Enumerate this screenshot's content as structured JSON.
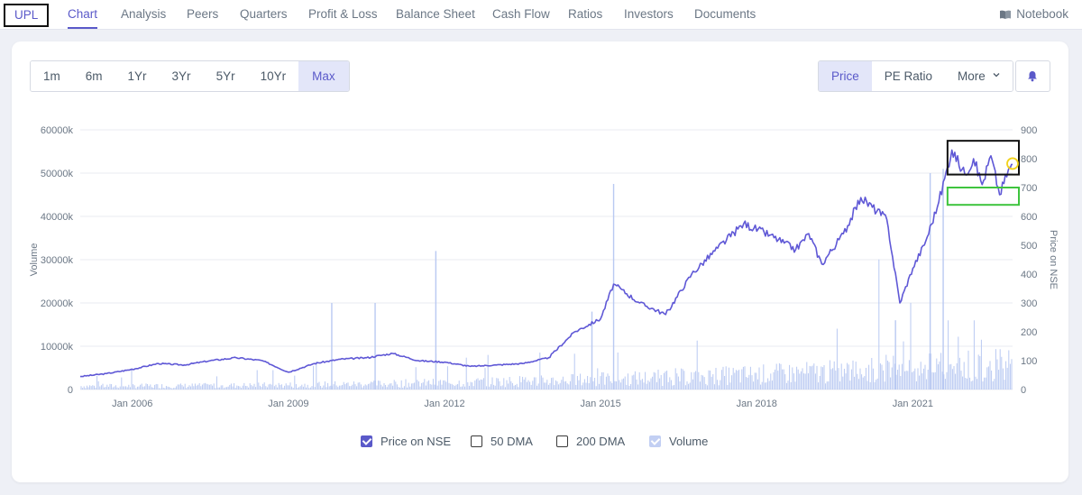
{
  "nav": {
    "company": "UPL",
    "items": [
      "Chart",
      "Analysis",
      "Peers",
      "Quarters",
      "Profit & Loss",
      "Balance Sheet",
      "Cash Flow",
      "Ratios",
      "Investors",
      "Documents"
    ],
    "active": "Chart",
    "notebook": "Notebook"
  },
  "ranges": [
    "1m",
    "6m",
    "1Yr",
    "3Yr",
    "5Yr",
    "10Yr",
    "Max"
  ],
  "active_range": "Max",
  "metrics": {
    "price": "Price",
    "pe": "PE Ratio",
    "more": "More"
  },
  "active_metric": "Price",
  "legend": {
    "price": "Price on NSE",
    "dma50": "50 DMA",
    "dma200": "200 DMA",
    "volume": "Volume"
  },
  "colors": {
    "accent": "#5a59c9",
    "price_line": "#5f58d6",
    "volume_bar": "#b9c9f2",
    "grid": "#e8ebf0",
    "highlight_black": "#111111",
    "highlight_green": "#3ec43e",
    "highlight_yellow": "#f2d21b"
  },
  "icons": {
    "notebook": "book-icon",
    "alert": "bell-icon",
    "more": "chevron-down-icon"
  },
  "chart_data": {
    "type": "line",
    "x_type": "date",
    "xlim": [
      "2005-01",
      "2022-12"
    ],
    "x_ticks": [
      "Jan 2006",
      "Jan 2009",
      "Jan 2012",
      "Jan 2015",
      "Jan 2018",
      "Jan 2021"
    ],
    "ylabel_left": "Volume",
    "ylabel_right": "Price on NSE",
    "ylim_left": [
      0,
      60000
    ],
    "ylim_right": [
      0,
      900
    ],
    "y_ticks_left": [
      "0",
      "10000k",
      "20000k",
      "30000k",
      "40000k",
      "50000k",
      "60000k"
    ],
    "y_ticks_right": [
      "0",
      "100",
      "200",
      "300",
      "400",
      "500",
      "600",
      "700",
      "800",
      "900"
    ],
    "grid": true,
    "series": [
      {
        "name": "Price on NSE",
        "axis": "right",
        "points": [
          [
            "2005-01",
            45
          ],
          [
            "2005-07",
            55
          ],
          [
            "2006-01",
            70
          ],
          [
            "2006-07",
            90
          ],
          [
            "2007-01",
            85
          ],
          [
            "2007-07",
            100
          ],
          [
            "2008-01",
            110
          ],
          [
            "2008-07",
            100
          ],
          [
            "2009-01",
            60
          ],
          [
            "2009-07",
            90
          ],
          [
            "2010-01",
            105
          ],
          [
            "2010-07",
            110
          ],
          [
            "2011-01",
            125
          ],
          [
            "2011-07",
            100
          ],
          [
            "2012-01",
            95
          ],
          [
            "2012-07",
            80
          ],
          [
            "2013-01",
            85
          ],
          [
            "2013-07",
            90
          ],
          [
            "2014-01",
            110
          ],
          [
            "2014-07",
            200
          ],
          [
            "2015-01",
            245
          ],
          [
            "2015-04",
            365
          ],
          [
            "2015-10",
            300
          ],
          [
            "2016-04",
            260
          ],
          [
            "2016-10",
            400
          ],
          [
            "2017-04",
            490
          ],
          [
            "2017-10",
            575
          ],
          [
            "2018-04",
            535
          ],
          [
            "2018-10",
            485
          ],
          [
            "2019-01",
            540
          ],
          [
            "2019-04",
            435
          ],
          [
            "2019-09",
            540
          ],
          [
            "2020-01",
            665
          ],
          [
            "2020-07",
            590
          ],
          [
            "2020-10",
            300
          ],
          [
            "2021-01",
            420
          ],
          [
            "2021-04",
            515
          ],
          [
            "2021-07",
            650
          ],
          [
            "2021-10",
            830
          ],
          [
            "2022-01",
            745
          ],
          [
            "2022-03",
            800
          ],
          [
            "2022-05",
            710
          ],
          [
            "2022-07",
            810
          ],
          [
            "2022-09",
            675
          ],
          [
            "2022-11",
            760
          ],
          [
            "2022-12",
            780
          ]
        ]
      },
      {
        "name": "Volume",
        "axis": "left",
        "notable_spikes": [
          [
            "2011-11",
            32000
          ],
          [
            "2014-11",
            18000
          ],
          [
            "2015-04",
            47500
          ],
          [
            "2009-11",
            20000
          ],
          [
            "2010-09",
            20000
          ],
          [
            "2021-08",
            51000
          ],
          [
            "2021-05",
            50000
          ],
          [
            "2020-09",
            16000
          ]
        ]
      }
    ]
  }
}
